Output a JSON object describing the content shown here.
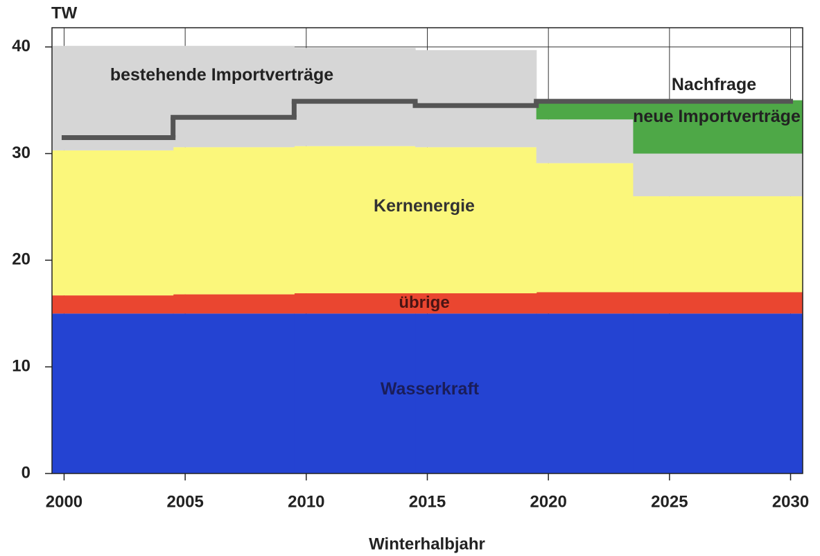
{
  "chart_data": {
    "type": "step-area",
    "y_axis_label": "TW",
    "x_axis_label": "Winterhalbjahr",
    "x": [
      1999.5,
      2004.5,
      2009.5,
      2014.5,
      2019.5,
      2023.5
    ],
    "series": [
      {
        "name": "Wasserkraft",
        "color": "#2443d2",
        "values": [
          15.0,
          15.0,
          15.0,
          15.0,
          15.0,
          15.0
        ]
      },
      {
        "name": "übrige",
        "color": "#ea4630",
        "values": [
          1.7,
          1.8,
          1.9,
          1.9,
          2.0,
          2.0
        ]
      },
      {
        "name": "Kernenergie",
        "color": "#fbf77b",
        "values": [
          13.6,
          13.8,
          13.8,
          13.7,
          12.1,
          9.0
        ]
      },
      {
        "name": "bestehende Importverträge",
        "color": "#d6d6d6",
        "values": [
          9.8,
          9.5,
          9.2,
          9.1,
          4.1,
          4.0
        ]
      },
      {
        "name": "neue Importverträge",
        "color": "#4ea847",
        "values": [
          0,
          0,
          0,
          0,
          1.7,
          5.0
        ]
      }
    ],
    "demand": {
      "name": "Nachfrage",
      "color": "#555555",
      "x": [
        2000,
        2004.5,
        2009.5,
        2014.5,
        2019.5,
        2030
      ],
      "values": [
        31.5,
        33.4,
        34.9,
        34.5,
        34.9,
        34.9
      ]
    },
    "xlim": [
      1999.5,
      2030.5
    ],
    "xticks": [
      2000,
      2005,
      2010,
      2015,
      2020,
      2025,
      2030
    ],
    "ylim": [
      0,
      41.8
    ],
    "yticks": [
      0,
      10,
      20,
      30,
      40
    ],
    "grid": true
  }
}
